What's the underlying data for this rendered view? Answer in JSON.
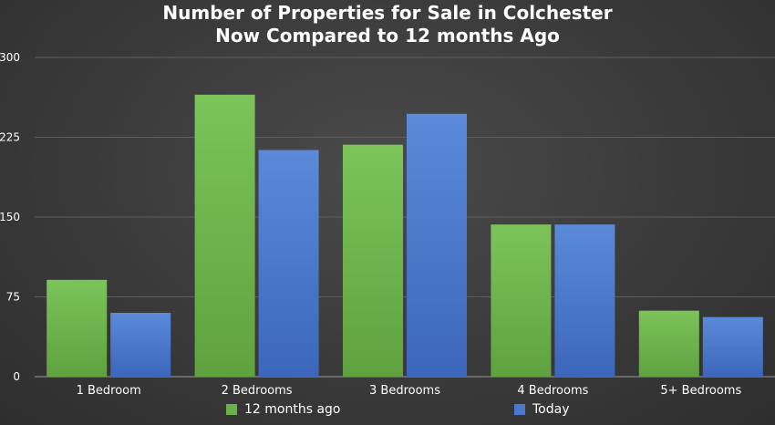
{
  "chart_data": {
    "type": "bar",
    "title": "Number of Properties for Sale in Colchester",
    "subtitle": "Now Compared to 12 months Ago",
    "categories": [
      "1 Bedroom",
      "2 Bedrooms",
      "3 Bedrooms",
      "4 Bedrooms",
      "5+ Bedrooms"
    ],
    "series": [
      {
        "name": "12 months ago",
        "color": "#6ab04c",
        "values": [
          91,
          265,
          218,
          143,
          62
        ]
      },
      {
        "name": "Today",
        "color": "#4a78cc",
        "values": [
          60,
          213,
          247,
          143,
          56
        ]
      }
    ],
    "ylim": [
      0,
      300
    ],
    "yticks": [
      0,
      75,
      150,
      225,
      300
    ],
    "grid": true,
    "legend": "bottom"
  }
}
